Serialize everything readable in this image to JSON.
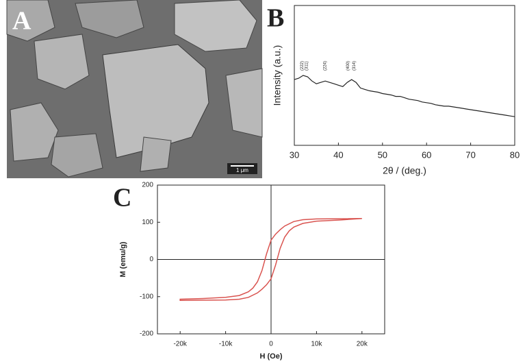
{
  "panel_labels": [
    "A",
    "B",
    "C"
  ],
  "image": {
    "scale_bar": "1 μm"
  },
  "chart_data": [
    {
      "type": "line",
      "x_label": "2θ / (deg.)",
      "y_label": "Intensity (a.u.)",
      "color": "#222222",
      "x": [
        30,
        31,
        32,
        33,
        34,
        35,
        36,
        37,
        38,
        39,
        40,
        41,
        42,
        43,
        44,
        45,
        46,
        47,
        48,
        49,
        50,
        51,
        52,
        53,
        54,
        55,
        56,
        57,
        58,
        59,
        60,
        61,
        62,
        63,
        64,
        65,
        66,
        67,
        68,
        69,
        70,
        71,
        72,
        73,
        74,
        75,
        76,
        77,
        78,
        79,
        80
      ],
      "values": [
        47,
        48,
        50,
        49,
        46,
        44,
        45,
        46,
        45,
        44,
        43,
        42,
        45,
        47,
        45,
        41,
        40,
        39,
        38.5,
        38,
        37,
        36.5,
        36,
        35,
        35,
        34,
        33,
        32.5,
        32,
        31,
        30.5,
        30,
        29,
        28.5,
        28,
        28,
        27.5,
        27,
        26.5,
        26,
        25.5,
        25,
        24.5,
        24,
        23.5,
        23,
        22.5,
        22,
        21.5,
        21,
        20.5
      ],
      "annotations": [
        {
          "text": "(222)",
          "x": 31.8
        },
        {
          "text": "(311)",
          "x": 32.8
        },
        {
          "text": "(224)",
          "x": 37
        },
        {
          "text": "(400)",
          "x": 42.2
        },
        {
          "text": "(314)",
          "x": 43.6
        }
      ],
      "xlim": [
        30,
        80
      ],
      "xticks": [
        30,
        40,
        50,
        60,
        70,
        80
      ],
      "ylim": [
        0,
        100
      ]
    },
    {
      "type": "line",
      "x_label": "H (Oe)",
      "y_label": "M (emu/g)",
      "color": "#d9534f",
      "zero_lines": true,
      "x": [
        20000,
        15000,
        10000,
        7000,
        5000,
        3000,
        2000,
        1000,
        0,
        -1000,
        -2000,
        -3000,
        -4000,
        -5000,
        -7000,
        -10000,
        -15000,
        -20000,
        -20000,
        -15000,
        -10000,
        -7000,
        -5000,
        -3000,
        -2000,
        -1000,
        0,
        1000,
        2000,
        3000,
        4000,
        5000,
        7000,
        10000,
        15000,
        20000
      ],
      "values": [
        110,
        109.5,
        109,
        107,
        102,
        90,
        80,
        68,
        52,
        15,
        -30,
        -60,
        -77,
        -87,
        -97,
        -102,
        -105,
        -107,
        -110,
        -109.5,
        -109,
        -107,
        -102,
        -90,
        -80,
        -68,
        -52,
        -15,
        30,
        60,
        77,
        87,
        97,
        103,
        106,
        110
      ],
      "xlim": [
        -25000,
        25000
      ],
      "xticks": [
        {
          "value": -20000,
          "label": "-20k"
        },
        {
          "value": -10000,
          "label": "-10k"
        },
        0,
        {
          "value": 10000,
          "label": "10k"
        },
        {
          "value": 20000,
          "label": "20k"
        }
      ],
      "ylim": [
        -200,
        200
      ],
      "yticks": [
        200,
        100,
        0,
        -100,
        -200
      ]
    }
  ]
}
